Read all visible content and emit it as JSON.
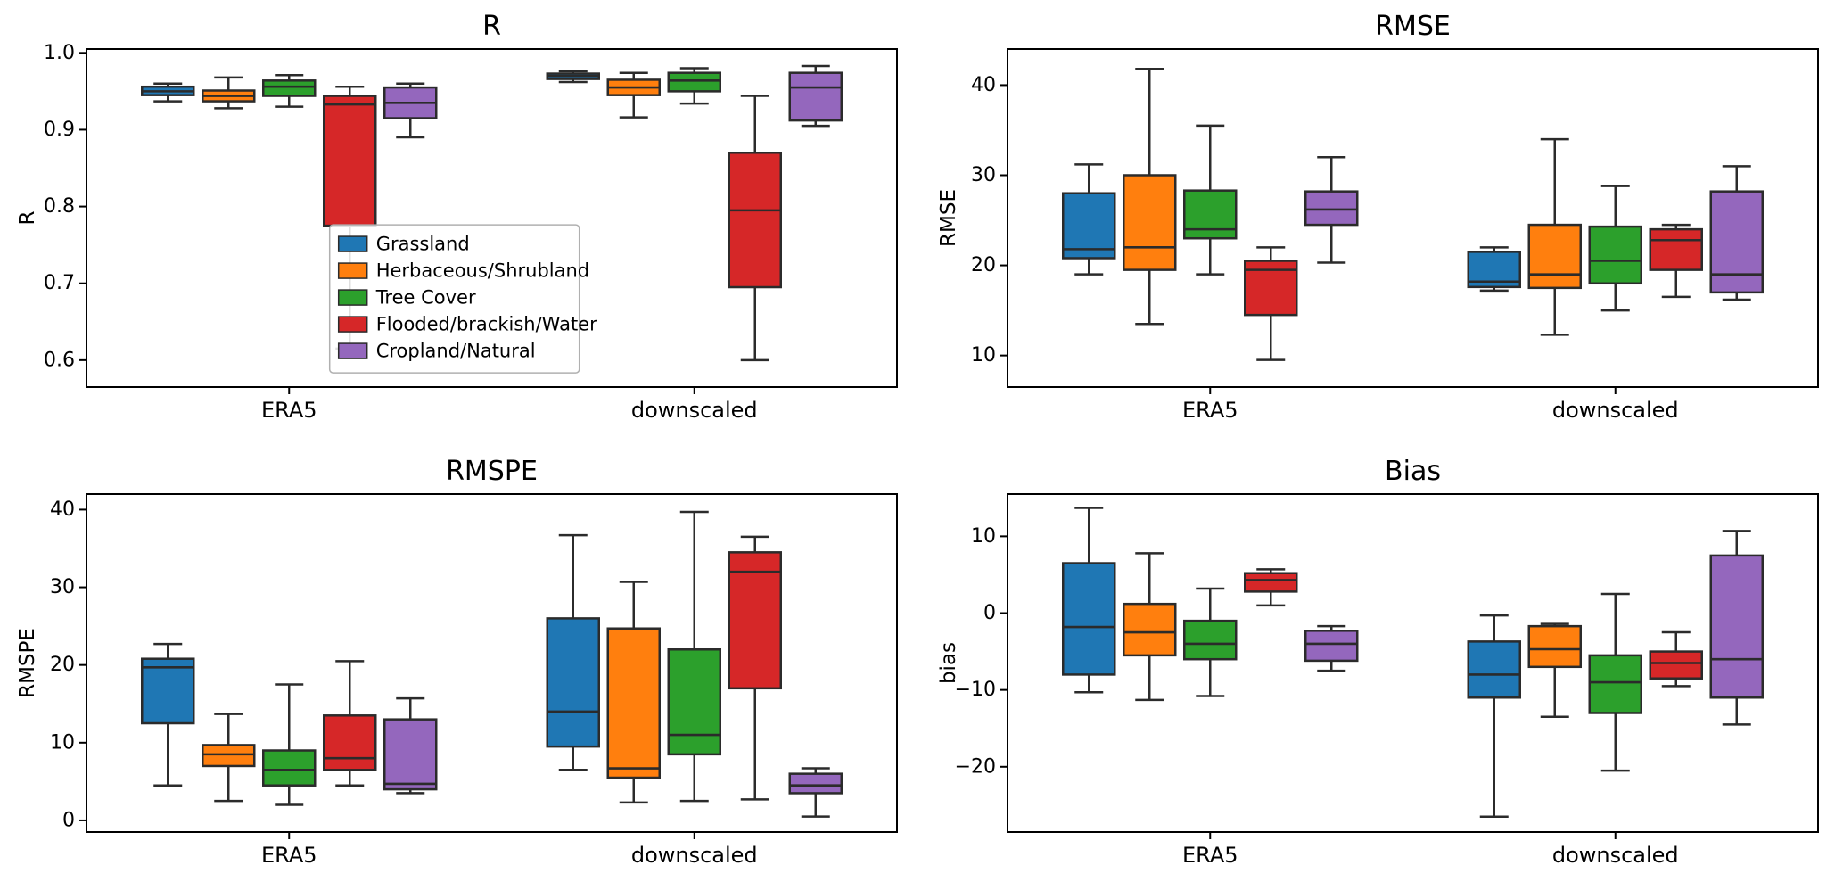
{
  "figure": {
    "background": "#ffffff",
    "edge_color": "#2b2b2b",
    "spine_color": "#000000"
  },
  "legend": {
    "position": "inside-top-left-plot",
    "labels": [
      "Grassland",
      "Herbaceous/Shrubland",
      "Tree Cover",
      "Flooded/brackish/Water",
      "Cropland/Natural"
    ]
  },
  "chart_data": [
    {
      "type": "box",
      "title": "R",
      "ylabel": "R",
      "categories": [
        "ERA5",
        "downscaled"
      ],
      "ylim": [
        0.565,
        1.005
      ],
      "yticks": [
        0.6,
        0.7,
        0.8,
        0.9,
        1.0
      ],
      "ytick_labels": [
        "0.6",
        "0.7",
        "0.8",
        "0.9",
        "1.0"
      ],
      "show_legend": true,
      "series": [
        {
          "name": "Grassland",
          "color": "#1f77b4",
          "boxes": [
            {
              "whislo": 0.937,
              "q1": 0.945,
              "med": 0.95,
              "q3": 0.956,
              "whishi": 0.96
            },
            {
              "whislo": 0.962,
              "q1": 0.966,
              "med": 0.97,
              "q3": 0.973,
              "whishi": 0.976
            }
          ]
        },
        {
          "name": "Herbaceous/Shrubland",
          "color": "#ff7f0e",
          "boxes": [
            {
              "whislo": 0.928,
              "q1": 0.937,
              "med": 0.944,
              "q3": 0.951,
              "whishi": 0.968
            },
            {
              "whislo": 0.916,
              "q1": 0.945,
              "med": 0.955,
              "q3": 0.965,
              "whishi": 0.974
            }
          ]
        },
        {
          "name": "Tree Cover",
          "color": "#2ca02c",
          "boxes": [
            {
              "whislo": 0.93,
              "q1": 0.944,
              "med": 0.956,
              "q3": 0.964,
              "whishi": 0.971
            },
            {
              "whislo": 0.934,
              "q1": 0.95,
              "med": 0.964,
              "q3": 0.974,
              "whishi": 0.98
            }
          ]
        },
        {
          "name": "Flooded/brackish/Water",
          "color": "#d62728",
          "boxes": [
            {
              "whislo": 0.615,
              "q1": 0.775,
              "med": 0.933,
              "q3": 0.944,
              "whishi": 0.956
            },
            {
              "whislo": 0.6,
              "q1": 0.695,
              "med": 0.795,
              "q3": 0.87,
              "whishi": 0.944
            }
          ]
        },
        {
          "name": "Cropland/Natural",
          "color": "#9467bd",
          "boxes": [
            {
              "whislo": 0.89,
              "q1": 0.915,
              "med": 0.935,
              "q3": 0.955,
              "whishi": 0.96
            },
            {
              "whislo": 0.905,
              "q1": 0.912,
              "med": 0.955,
              "q3": 0.974,
              "whishi": 0.983
            }
          ]
        }
      ]
    },
    {
      "type": "box",
      "title": "RMSE",
      "ylabel": "RMSE",
      "categories": [
        "ERA5",
        "downscaled"
      ],
      "ylim": [
        6.5,
        44
      ],
      "yticks": [
        10,
        20,
        30,
        40
      ],
      "ytick_labels": [
        "10",
        "20",
        "30",
        "40"
      ],
      "show_legend": false,
      "series": [
        {
          "name": "Grassland",
          "color": "#1f77b4",
          "boxes": [
            {
              "whislo": 19.0,
              "q1": 20.8,
              "med": 21.8,
              "q3": 28.0,
              "whishi": 31.2
            },
            {
              "whislo": 17.2,
              "q1": 17.6,
              "med": 18.2,
              "q3": 21.5,
              "whishi": 22.0
            }
          ]
        },
        {
          "name": "Herbaceous/Shrubland",
          "color": "#ff7f0e",
          "boxes": [
            {
              "whislo": 13.5,
              "q1": 19.5,
              "med": 22.0,
              "q3": 30.0,
              "whishi": 41.8
            },
            {
              "whislo": 12.3,
              "q1": 17.5,
              "med": 19.0,
              "q3": 24.5,
              "whishi": 34.0
            }
          ]
        },
        {
          "name": "Tree Cover",
          "color": "#2ca02c",
          "boxes": [
            {
              "whislo": 19.0,
              "q1": 23.0,
              "med": 24.0,
              "q3": 28.3,
              "whishi": 35.5
            },
            {
              "whislo": 15.0,
              "q1": 18.0,
              "med": 20.5,
              "q3": 24.3,
              "whishi": 28.8
            }
          ]
        },
        {
          "name": "Flooded/brackish/Water",
          "color": "#d62728",
          "boxes": [
            {
              "whislo": 9.5,
              "q1": 14.5,
              "med": 19.5,
              "q3": 20.5,
              "whishi": 22.0
            },
            {
              "whislo": 16.5,
              "q1": 19.5,
              "med": 22.8,
              "q3": 24.0,
              "whishi": 24.5
            }
          ]
        },
        {
          "name": "Cropland/Natural",
          "color": "#9467bd",
          "boxes": [
            {
              "whislo": 20.3,
              "q1": 24.5,
              "med": 26.2,
              "q3": 28.2,
              "whishi": 32.0
            },
            {
              "whislo": 16.2,
              "q1": 17.0,
              "med": 19.0,
              "q3": 28.2,
              "whishi": 31.0
            }
          ]
        }
      ]
    },
    {
      "type": "box",
      "title": "RMSPE",
      "ylabel": "RMSPE",
      "categories": [
        "ERA5",
        "downscaled"
      ],
      "ylim": [
        -1.5,
        42
      ],
      "yticks": [
        0,
        10,
        20,
        30,
        40
      ],
      "ytick_labels": [
        "0",
        "10",
        "20",
        "30",
        "40"
      ],
      "show_legend": false,
      "series": [
        {
          "name": "Grassland",
          "color": "#1f77b4",
          "boxes": [
            {
              "whislo": 4.5,
              "q1": 12.5,
              "med": 19.7,
              "q3": 20.8,
              "whishi": 22.7
            },
            {
              "whislo": 6.5,
              "q1": 9.5,
              "med": 14.0,
              "q3": 26.0,
              "whishi": 36.7
            }
          ]
        },
        {
          "name": "Herbaceous/Shrubland",
          "color": "#ff7f0e",
          "boxes": [
            {
              "whislo": 2.5,
              "q1": 7.0,
              "med": 8.5,
              "q3": 9.7,
              "whishi": 13.7
            },
            {
              "whislo": 2.3,
              "q1": 5.5,
              "med": 6.7,
              "q3": 24.7,
              "whishi": 30.7
            }
          ]
        },
        {
          "name": "Tree Cover",
          "color": "#2ca02c",
          "boxes": [
            {
              "whislo": 2.0,
              "q1": 4.5,
              "med": 6.5,
              "q3": 9.0,
              "whishi": 17.5
            },
            {
              "whislo": 2.5,
              "q1": 8.5,
              "med": 11.0,
              "q3": 22.0,
              "whishi": 39.7
            }
          ]
        },
        {
          "name": "Flooded/brackish/Water",
          "color": "#d62728",
          "boxes": [
            {
              "whislo": 4.5,
              "q1": 6.5,
              "med": 8.0,
              "q3": 13.5,
              "whishi": 20.5
            },
            {
              "whislo": 2.7,
              "q1": 17.0,
              "med": 32.0,
              "q3": 34.5,
              "whishi": 36.5
            }
          ]
        },
        {
          "name": "Cropland/Natural",
          "color": "#9467bd",
          "boxes": [
            {
              "whislo": 3.5,
              "q1": 4.0,
              "med": 4.7,
              "q3": 13.0,
              "whishi": 15.7
            },
            {
              "whislo": 0.5,
              "q1": 3.5,
              "med": 4.5,
              "q3": 6.0,
              "whishi": 6.7
            }
          ]
        }
      ]
    },
    {
      "type": "box",
      "title": "Bias",
      "ylabel": "bias",
      "categories": [
        "ERA5",
        "downscaled"
      ],
      "ylim": [
        -28.5,
        15.5
      ],
      "yticks": [
        -20,
        -10,
        0,
        10
      ],
      "ytick_labels": [
        "−20",
        "−10",
        "0",
        "10"
      ],
      "show_legend": false,
      "series": [
        {
          "name": "Grassland",
          "color": "#1f77b4",
          "boxes": [
            {
              "whislo": -10.3,
              "q1": -8.0,
              "med": -1.8,
              "q3": 6.5,
              "whishi": 13.7
            },
            {
              "whislo": -26.5,
              "q1": -11.0,
              "med": -8.0,
              "q3": -3.7,
              "whishi": -0.3
            }
          ]
        },
        {
          "name": "Herbaceous/Shrubland",
          "color": "#ff7f0e",
          "boxes": [
            {
              "whislo": -11.3,
              "q1": -5.5,
              "med": -2.5,
              "q3": 1.2,
              "whishi": 7.8
            },
            {
              "whislo": -13.5,
              "q1": -7.0,
              "med": -4.7,
              "q3": -1.7,
              "whishi": -1.4
            }
          ]
        },
        {
          "name": "Tree Cover",
          "color": "#2ca02c",
          "boxes": [
            {
              "whislo": -10.8,
              "q1": -6.0,
              "med": -4.0,
              "q3": -1.0,
              "whishi": 3.2
            },
            {
              "whislo": -20.5,
              "q1": -13.0,
              "med": -9.0,
              "q3": -5.5,
              "whishi": 2.5
            }
          ]
        },
        {
          "name": "Flooded/brackish/Water",
          "color": "#d62728",
          "boxes": [
            {
              "whislo": 1.0,
              "q1": 2.8,
              "med": 4.3,
              "q3": 5.2,
              "whishi": 5.7
            },
            {
              "whislo": -9.5,
              "q1": -8.5,
              "med": -6.5,
              "q3": -5.0,
              "whishi": -2.5
            }
          ]
        },
        {
          "name": "Cropland/Natural",
          "color": "#9467bd",
          "boxes": [
            {
              "whislo": -7.5,
              "q1": -6.2,
              "med": -4.0,
              "q3": -2.3,
              "whishi": -1.7
            },
            {
              "whislo": -14.5,
              "q1": -11.0,
              "med": -6.0,
              "q3": 7.5,
              "whishi": 10.7
            }
          ]
        }
      ]
    }
  ]
}
